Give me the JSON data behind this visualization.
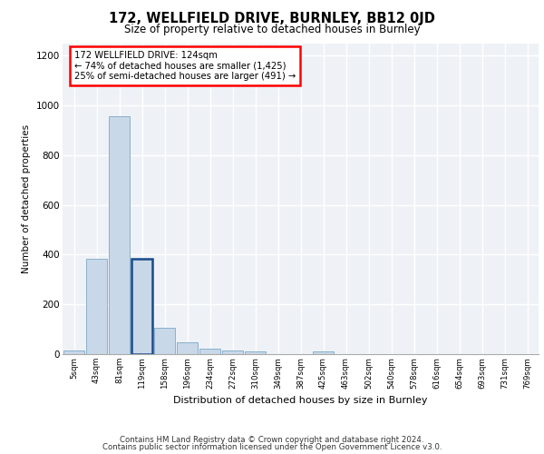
{
  "title1": "172, WELLFIELD DRIVE, BURNLEY, BB12 0JD",
  "title2": "Size of property relative to detached houses in Burnley",
  "xlabel": "Distribution of detached houses by size in Burnley",
  "ylabel": "Number of detached properties",
  "categories": [
    "5sqm",
    "43sqm",
    "81sqm",
    "119sqm",
    "158sqm",
    "196sqm",
    "234sqm",
    "272sqm",
    "310sqm",
    "349sqm",
    "387sqm",
    "425sqm",
    "463sqm",
    "502sqm",
    "540sqm",
    "578sqm",
    "616sqm",
    "654sqm",
    "693sqm",
    "731sqm",
    "769sqm"
  ],
  "values": [
    15,
    385,
    955,
    385,
    105,
    48,
    22,
    15,
    12,
    0,
    0,
    12,
    0,
    0,
    0,
    0,
    0,
    0,
    0,
    0,
    0
  ],
  "bar_color": "#c8d8e8",
  "bar_edge_color": "#8ab0cc",
  "highlight_bar_index": 3,
  "highlight_bar_edge_color": "#1a4a8a",
  "annotation_text_line1": "172 WELLFIELD DRIVE: 124sqm",
  "annotation_text_line2": "← 74% of detached houses are smaller (1,425)",
  "annotation_text_line3": "25% of semi-detached houses are larger (491) →",
  "ylim": [
    0,
    1250
  ],
  "yticks": [
    0,
    200,
    400,
    600,
    800,
    1000,
    1200
  ],
  "bg_color": "#eef2f7",
  "footer1": "Contains HM Land Registry data © Crown copyright and database right 2024.",
  "footer2": "Contains public sector information licensed under the Open Government Licence v3.0."
}
